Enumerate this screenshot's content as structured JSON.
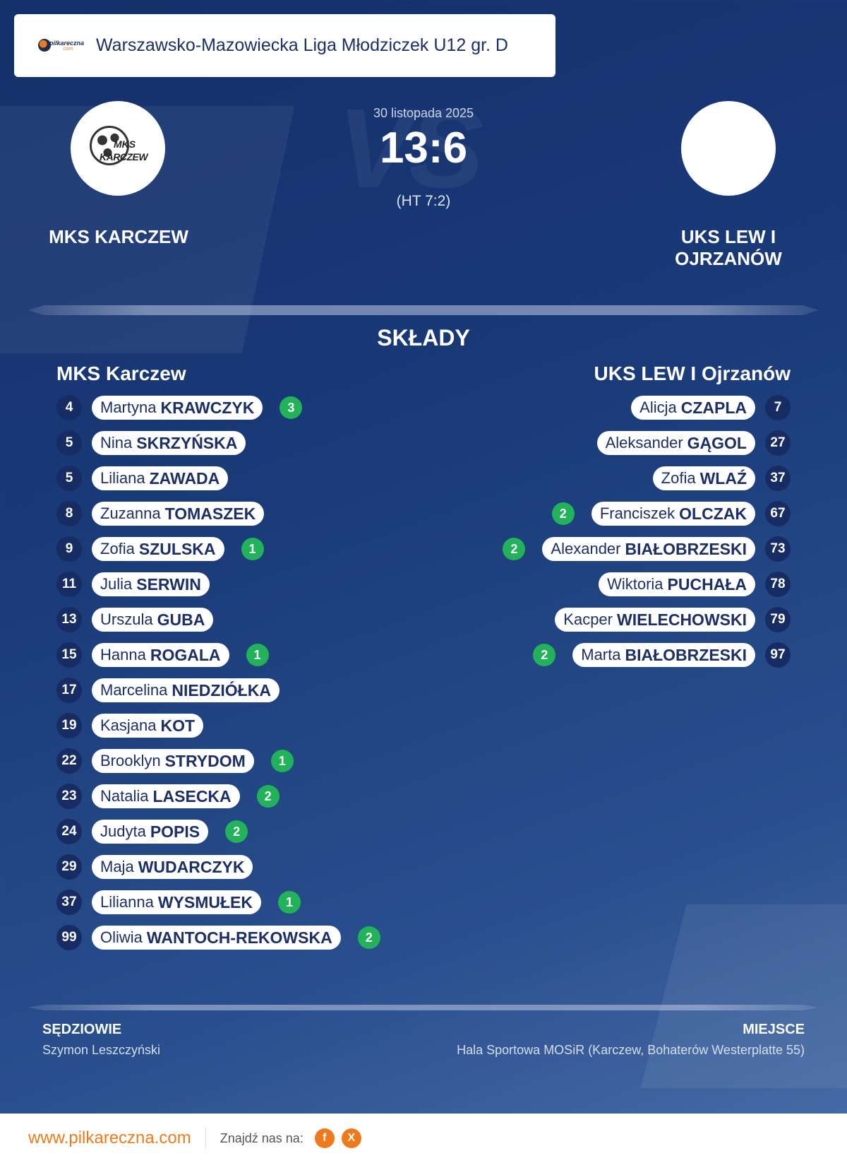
{
  "header": {
    "logo_brand": "pilkareczna",
    "logo_domain": ".com",
    "title": "Warszawsko-Mazowiecka Liga Młodziczek U12 gr. D"
  },
  "match": {
    "watermark": "VS",
    "date": "30 listopada 2025",
    "score": "13:6",
    "halftime": "(HT 7:2)"
  },
  "home": {
    "name": "MKS KARCZEW",
    "crest_text_1": "MKS",
    "crest_text_2": "KARCZEW",
    "lineup_title": "MKS Karczew",
    "players": [
      {
        "num": "4",
        "first": "Martyna",
        "last": "KRAWCZYK",
        "goals": "3"
      },
      {
        "num": "5",
        "first": "Nina",
        "last": "SKRZYŃSKA",
        "goals": ""
      },
      {
        "num": "5",
        "first": "Liliana",
        "last": "ZAWADA",
        "goals": ""
      },
      {
        "num": "8",
        "first": "Zuzanna",
        "last": "TOMASZEK",
        "goals": ""
      },
      {
        "num": "9",
        "first": "Zofia",
        "last": "SZULSKA",
        "goals": "1"
      },
      {
        "num": "11",
        "first": "Julia",
        "last": "SERWIN",
        "goals": ""
      },
      {
        "num": "13",
        "first": "Urszula",
        "last": "GUBA",
        "goals": ""
      },
      {
        "num": "15",
        "first": "Hanna",
        "last": "ROGALA",
        "goals": "1"
      },
      {
        "num": "17",
        "first": "Marcelina",
        "last": "NIEDZIÓŁKA",
        "goals": ""
      },
      {
        "num": "19",
        "first": "Kasjana",
        "last": "KOT",
        "goals": ""
      },
      {
        "num": "22",
        "first": "Brooklyn",
        "last": "STRYDOM",
        "goals": "1"
      },
      {
        "num": "23",
        "first": "Natalia",
        "last": "LASECKA",
        "goals": "2"
      },
      {
        "num": "24",
        "first": "Judyta",
        "last": "POPIS",
        "goals": "2"
      },
      {
        "num": "29",
        "first": "Maja",
        "last": "WUDARCZYK",
        "goals": ""
      },
      {
        "num": "37",
        "first": "Lilianna",
        "last": "WYSMUŁEK",
        "goals": "1"
      },
      {
        "num": "99",
        "first": "Oliwia",
        "last": "WANTOCH-REKOWSKA",
        "goals": "2"
      }
    ]
  },
  "away": {
    "name_line1": "UKS LEW I",
    "name_line2": "OJRZANÓW",
    "lineup_title": "UKS LEW I Ojrzanów",
    "players": [
      {
        "num": "7",
        "first": "Alicja",
        "last": "CZAPLA",
        "goals": ""
      },
      {
        "num": "27",
        "first": "Aleksander",
        "last": "GĄGOL",
        "goals": ""
      },
      {
        "num": "37",
        "first": "Zofia",
        "last": "WLAŹ",
        "goals": ""
      },
      {
        "num": "67",
        "first": "Franciszek",
        "last": "OLCZAK",
        "goals": "2"
      },
      {
        "num": "73",
        "first": "Alexander",
        "last": "BIAŁOBRZESKI",
        "goals": "2"
      },
      {
        "num": "78",
        "first": "Wiktoria",
        "last": "PUCHAŁA",
        "goals": ""
      },
      {
        "num": "79",
        "first": "Kacper",
        "last": "WIELECHOWSKI",
        "goals": ""
      },
      {
        "num": "97",
        "first": "Marta",
        "last": "BIAŁOBRZESKI",
        "goals": "2"
      }
    ]
  },
  "section_title": "SKŁADY",
  "referees": {
    "label": "SĘDZIOWIE",
    "value": "Szymon Leszczyński"
  },
  "venue": {
    "label": "MIEJSCE",
    "value": "Hala Sportowa MOSiR (Karczew, Bohaterów Westerplatte 55)"
  },
  "footer": {
    "url": "www.pilkareczna.com",
    "find_us": "Znajdź nas na:",
    "social": [
      {
        "icon": "facebook-icon",
        "glyph": "f"
      },
      {
        "icon": "x-icon",
        "glyph": "X"
      }
    ]
  },
  "colors": {
    "background": "#1a3a78",
    "accent": "#f07a1a",
    "goal_badge": "#22b35a",
    "text_dark": "#1c2f66"
  }
}
